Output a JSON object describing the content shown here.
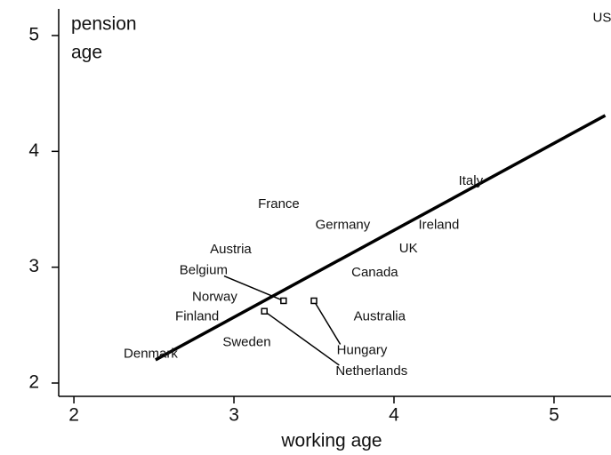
{
  "chart_data": {
    "type": "scatter",
    "xlabel": "working age",
    "ylabel_lines": [
      "pension",
      "age"
    ],
    "xlim": [
      1.905,
      5.356
    ],
    "ylim": [
      1.885,
      5.23
    ],
    "xticks": [
      2,
      3,
      4,
      5
    ],
    "yticks": [
      2,
      3,
      4,
      5
    ],
    "color": "#000000",
    "points": [
      {
        "label": "US",
        "x": 5.3,
        "y": 5.15
      },
      {
        "label": "Italy",
        "x": 4.48,
        "y": 3.74
      },
      {
        "label": "Ireland",
        "x": 4.28,
        "y": 3.36
      },
      {
        "label": "Germany",
        "x": 3.68,
        "y": 3.36
      },
      {
        "label": "France",
        "x": 3.28,
        "y": 3.54
      },
      {
        "label": "UK",
        "x": 4.09,
        "y": 3.16
      },
      {
        "label": "Canada",
        "x": 3.88,
        "y": 2.95
      },
      {
        "label": "Austria",
        "x": 2.98,
        "y": 3.15
      },
      {
        "label": "Belgium",
        "x": 2.81,
        "y": 2.97,
        "leader_to": {
          "x": 3.31,
          "y": 2.71
        }
      },
      {
        "label": "Norway",
        "x": 2.88,
        "y": 2.74
      },
      {
        "label": "Finland",
        "x": 2.77,
        "y": 2.57
      },
      {
        "label": "Sweden",
        "x": 3.08,
        "y": 2.35
      },
      {
        "label": "Australia",
        "x": 3.91,
        "y": 2.57
      },
      {
        "label": "Hungary",
        "x": 3.8,
        "y": 2.28,
        "leader_to": {
          "x": 3.5,
          "y": 2.71
        }
      },
      {
        "label": "Netherlands",
        "x": 3.86,
        "y": 2.1,
        "leader_to": {
          "x": 3.19,
          "y": 2.62
        }
      },
      {
        "label": "Denmark",
        "x": 2.48,
        "y": 2.25
      }
    ],
    "fit_line": {
      "x": [
        2.51,
        5.32
      ],
      "y": [
        2.2,
        4.31
      ]
    }
  }
}
